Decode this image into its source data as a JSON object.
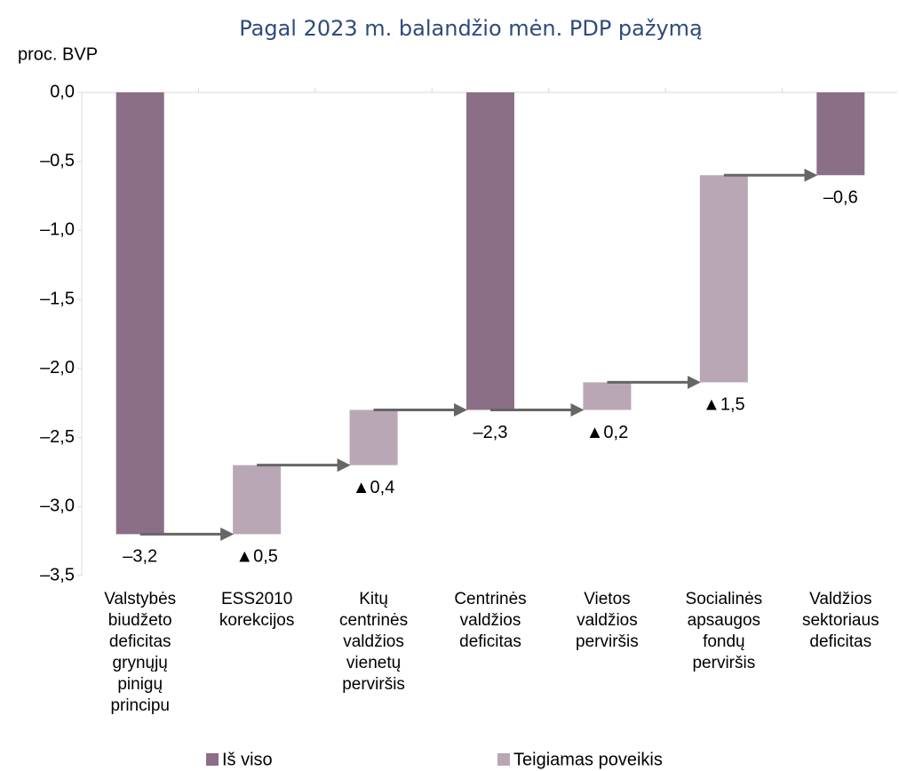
{
  "chart_data": {
    "type": "waterfall",
    "title": "Pagal 2023 m. balandžio mėn. PDP pažymą",
    "y_axis_label": "proc. BVP",
    "categories": [
      [
        "Valstybės",
        "biudžeto",
        "deficitas",
        "grynųjų",
        "pinigų",
        "principu"
      ],
      [
        "ESS2010",
        "korekcijos"
      ],
      [
        "Kitų",
        "centrinės",
        "valdžios",
        "vienetų",
        "perviršis"
      ],
      [
        "Centrinės",
        "valdžios",
        "deficitas"
      ],
      [
        "Vietos",
        "valdžios",
        "perviršis"
      ],
      [
        "Socialinės",
        "apsaugos",
        "fondų",
        "perviršis"
      ],
      [
        "Valdžios",
        "sektoriaus",
        "deficitas"
      ]
    ],
    "series": [
      {
        "name": "Iš viso",
        "color": "#8b6f86",
        "values": [
          -3.2,
          null,
          null,
          -2.3,
          null,
          null,
          -0.6
        ],
        "value_labels": [
          "–3,2",
          null,
          null,
          "–2,3",
          null,
          null,
          "–0,6"
        ]
      },
      {
        "name": "Teigiamas poveikis",
        "color": "#b9a7b6",
        "values": [
          null,
          0.5,
          0.4,
          null,
          0.2,
          1.5,
          null
        ],
        "value_labels": [
          null,
          "▲0,5",
          "▲0,4",
          null,
          "▲0,2",
          "▲1,5",
          null
        ]
      }
    ],
    "ylim": [
      -3.5,
      0
    ],
    "yticks": [
      {
        "value": 0,
        "label": "0,0"
      },
      {
        "value": -0.5,
        "label": "–0,5"
      },
      {
        "value": -1,
        "label": "–1,0"
      },
      {
        "value": -1.5,
        "label": "–1,5"
      },
      {
        "value": -2,
        "label": "–2,0"
      },
      {
        "value": -2.5,
        "label": "–2,5"
      },
      {
        "value": -3,
        "label": "–3,0"
      },
      {
        "value": -3.5,
        "label": "–3,5"
      }
    ],
    "legend": "bottom"
  }
}
